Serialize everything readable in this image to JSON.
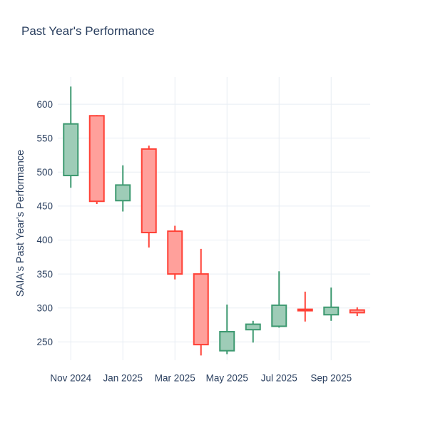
{
  "header": {
    "title": "Past Year's Performance"
  },
  "chart_data": {
    "type": "candlestick",
    "title": "Past Year's Performance",
    "xlabel": "",
    "ylabel": "SAIA's Past Year's Performance",
    "categories": [
      "Nov 2024",
      "Dec 2024",
      "Jan 2025",
      "Feb 2025",
      "Mar 2025",
      "Apr 2025",
      "May 2025",
      "Jun 2025",
      "Jul 2025",
      "Aug 2025",
      "Sep 2025",
      "Oct 2025"
    ],
    "ohlc": [
      {
        "x": "Nov 2024",
        "open": 495,
        "high": 626,
        "low": 477,
        "close": 571
      },
      {
        "x": "Dec 2024",
        "open": 583,
        "high": 584,
        "low": 453,
        "close": 457
      },
      {
        "x": "Jan 2025",
        "open": 458,
        "high": 510,
        "low": 442,
        "close": 481
      },
      {
        "x": "Feb 2025",
        "open": 534,
        "high": 539,
        "low": 389,
        "close": 411
      },
      {
        "x": "Mar 2025",
        "open": 413,
        "high": 421,
        "low": 342,
        "close": 350
      },
      {
        "x": "Apr 2025",
        "open": 350,
        "high": 387,
        "low": 230,
        "close": 246
      },
      {
        "x": "May 2025",
        "open": 237,
        "high": 305,
        "low": 232,
        "close": 265
      },
      {
        "x": "Jun 2025",
        "open": 268,
        "high": 281,
        "low": 249,
        "close": 276
      },
      {
        "x": "Jul 2025",
        "open": 273,
        "high": 354,
        "low": 271,
        "close": 304
      },
      {
        "x": "Aug 2025",
        "open": 298,
        "high": 324,
        "low": 280,
        "close": 296
      },
      {
        "x": "Sep 2025",
        "open": 290,
        "high": 330,
        "low": 281,
        "close": 301
      },
      {
        "x": "Oct 2025",
        "open": 297,
        "high": 301,
        "low": 288,
        "close": 293
      }
    ],
    "x_tick_labels": [
      "Nov 2024",
      "Jan 2025",
      "Mar 2025",
      "May 2025",
      "Jul 2025",
      "Sep 2025"
    ],
    "x_tick_every": 2,
    "y_ticks": [
      250,
      300,
      350,
      400,
      450,
      500,
      550,
      600
    ],
    "ylim": [
      223,
      640
    ],
    "grid": true,
    "legend_position": "none",
    "colors": {
      "increasing_line": "#3D9970",
      "increasing_fill": "#9ECCB7",
      "decreasing_line": "#FF4136",
      "decreasing_fill": "#FFA09B",
      "grid": "#E8EDF4",
      "text": "#2a3f5f",
      "background": "#ffffff"
    }
  }
}
